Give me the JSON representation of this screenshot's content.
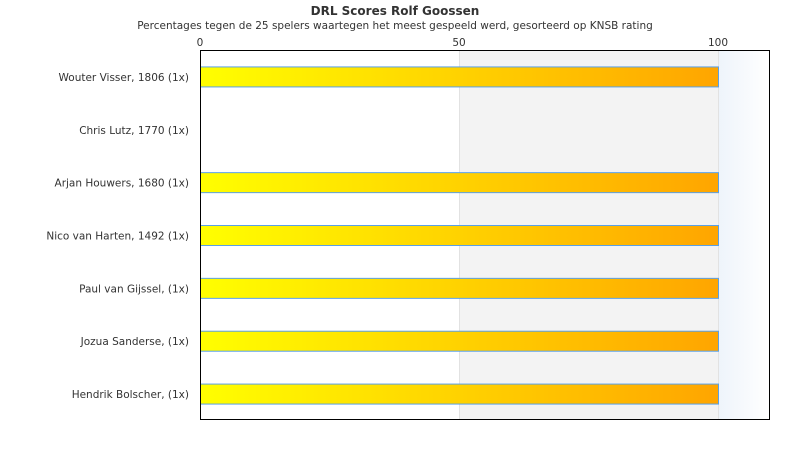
{
  "chart_data": {
    "type": "bar",
    "orientation": "horizontal",
    "title": "DRL Scores Rolf Goossen",
    "subtitle": "Percentages tegen de 25 spelers waartegen het meest gespeeld werd, gesorteerd op KNSB rating",
    "categories": [
      "Wouter Visser, 1806 (1x)",
      "Chris Lutz, 1770 (1x)",
      "Arjan Houwers, 1680 (1x)",
      "Nico van Harten, 1492 (1x)",
      "Paul van Gijssel,  (1x)",
      "Jozua Sanderse,  (1x)",
      "Hendrik Bolscher,  (1x)"
    ],
    "values": [
      100,
      0,
      100,
      100,
      100,
      100,
      100
    ],
    "xlim": [
      0,
      110
    ],
    "xticks": [
      "0",
      "50",
      "100"
    ],
    "tick_values": [
      0,
      50,
      100
    ],
    "axis_position": "top",
    "grid": false,
    "bands": [
      {
        "from": 0,
        "to": 50,
        "color": "#ffffff"
      },
      {
        "from": 50,
        "to": 100,
        "color": "#f3f3f3"
      },
      {
        "from": 100,
        "to": 110,
        "color": "#f0f6fc"
      }
    ],
    "colors": {
      "bar_start": "#ffff00",
      "bar_end": "#ffa500",
      "bar_border": "#5aa0e6"
    }
  }
}
